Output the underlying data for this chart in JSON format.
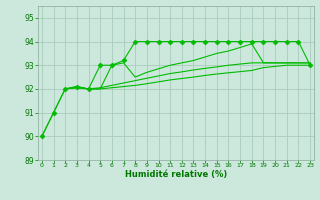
{
  "background_color": "#cce8dc",
  "grid_color": "#aaccbb",
  "line_color": "#00bb00",
  "xlabel": "Humidité relative (%)",
  "xlabel_color": "#007700",
  "ylim": [
    89,
    95.5
  ],
  "xlim": [
    -0.3,
    23.3
  ],
  "yticks": [
    89,
    90,
    91,
    92,
    93,
    94,
    95
  ],
  "xticks": [
    0,
    1,
    2,
    3,
    4,
    5,
    6,
    7,
    8,
    9,
    10,
    11,
    12,
    13,
    14,
    15,
    16,
    17,
    18,
    19,
    20,
    21,
    22,
    23
  ],
  "lines": [
    {
      "x": [
        0,
        1,
        2,
        3,
        4,
        5,
        6,
        7,
        8,
        9,
        10,
        11,
        12,
        13,
        14,
        15,
        16,
        17,
        18,
        19,
        20,
        21,
        22,
        23
      ],
      "y": [
        90.0,
        91.0,
        92.0,
        92.1,
        92.0,
        93.0,
        93.0,
        93.2,
        94.0,
        94.0,
        94.0,
        94.0,
        94.0,
        94.0,
        94.0,
        94.0,
        94.0,
        94.0,
        94.0,
        94.0,
        94.0,
        94.0,
        94.0,
        93.0
      ],
      "marker": "D",
      "markersize": 2.5
    },
    {
      "x": [
        0,
        1,
        2,
        3,
        4,
        5,
        6,
        7,
        8,
        9,
        10,
        11,
        12,
        13,
        14,
        15,
        16,
        17,
        18,
        19,
        20,
        21,
        22,
        23
      ],
      "y": [
        90.0,
        91.0,
        92.0,
        92.1,
        92.0,
        92.0,
        93.0,
        93.1,
        92.5,
        92.7,
        92.85,
        93.0,
        93.1,
        93.2,
        93.35,
        93.5,
        93.6,
        93.75,
        93.9,
        93.1,
        93.1,
        93.1,
        93.1,
        93.1
      ],
      "marker": null,
      "markersize": 0
    },
    {
      "x": [
        2,
        3,
        4,
        5,
        6,
        7,
        8,
        9,
        10,
        11,
        12,
        13,
        14,
        15,
        16,
        17,
        18,
        19,
        20,
        21,
        22,
        23
      ],
      "y": [
        92.0,
        92.05,
        92.0,
        92.05,
        92.15,
        92.25,
        92.35,
        92.45,
        92.55,
        92.65,
        92.72,
        92.8,
        92.87,
        92.93,
        93.0,
        93.05,
        93.1,
        93.1,
        93.1,
        93.1,
        93.1,
        93.1
      ],
      "marker": null,
      "markersize": 0
    },
    {
      "x": [
        2,
        3,
        4,
        5,
        6,
        7,
        8,
        9,
        10,
        11,
        12,
        13,
        14,
        15,
        16,
        17,
        18,
        19,
        20,
        21,
        22,
        23
      ],
      "y": [
        92.0,
        92.05,
        92.0,
        92.0,
        92.05,
        92.1,
        92.15,
        92.22,
        92.3,
        92.38,
        92.44,
        92.5,
        92.57,
        92.63,
        92.68,
        92.73,
        92.78,
        92.9,
        92.95,
        93.0,
        93.0,
        93.0
      ],
      "marker": null,
      "markersize": 0
    }
  ]
}
